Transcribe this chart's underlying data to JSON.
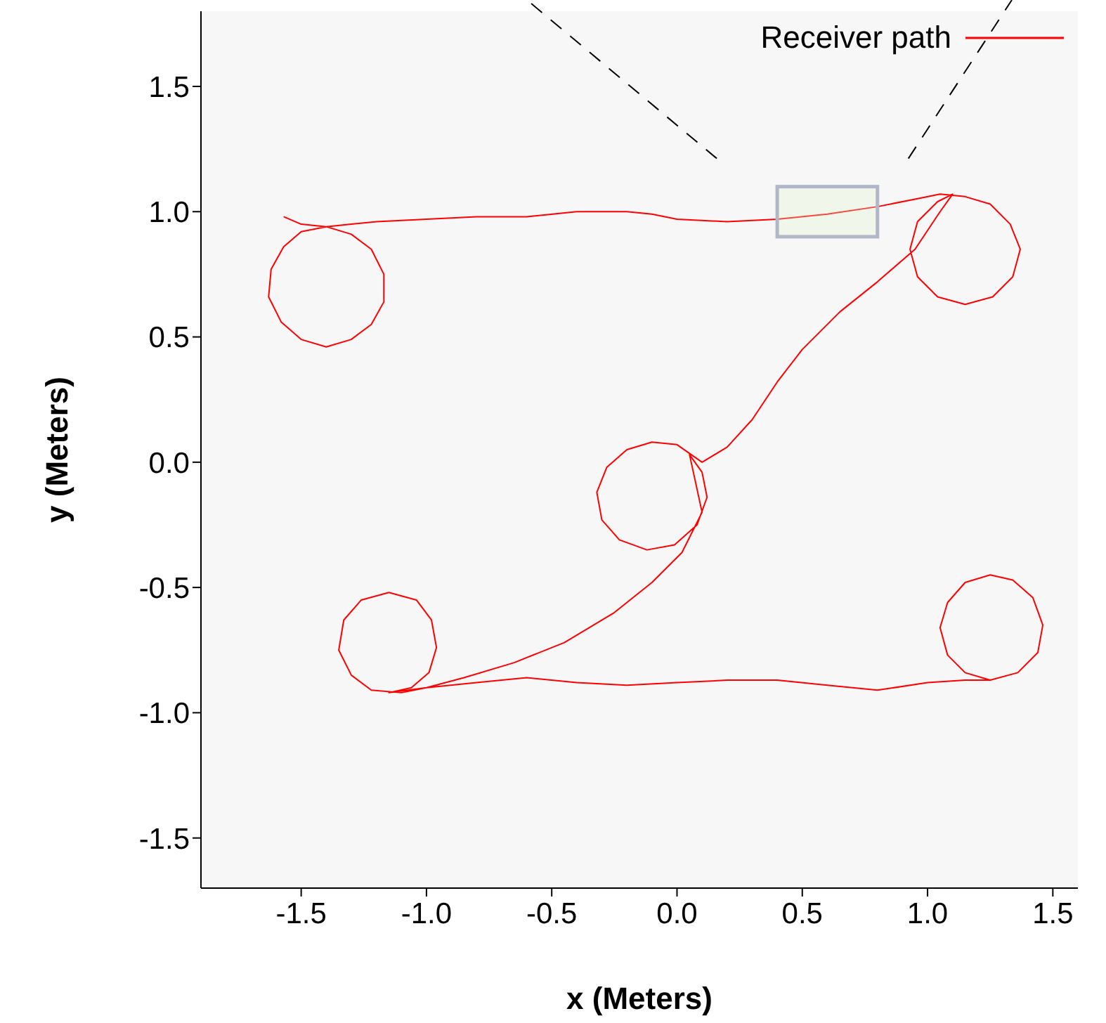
{
  "chart_data": {
    "type": "line",
    "xlabel": "x (Meters)",
    "ylabel": "y (Meters)",
    "xlim": [
      -1.9,
      1.6
    ],
    "ylim": [
      -1.7,
      1.8
    ],
    "xticks": [
      -1.5,
      {
        "value": -1,
        "label": "-1.0"
      },
      -0.5,
      {
        "value": 0,
        "label": "0.0"
      },
      0.5,
      {
        "value": 1,
        "label": "1.0"
      },
      1.5
    ],
    "yticks": [
      -1.5,
      {
        "value": -1,
        "label": "-1.0"
      },
      -0.5,
      {
        "value": 0,
        "label": "0.0"
      },
      0.5,
      {
        "value": 1,
        "label": "1.0"
      },
      1.5
    ],
    "grid": false,
    "legend": "top right",
    "marker": "none",
    "line_style": "solid",
    "series": [
      {
        "name": "Receiver path",
        "color": "#ff0000",
        "x": [
          -1.57,
          -1.5,
          -1.4,
          -1.3,
          -1.22,
          -1.17,
          -1.17,
          -1.22,
          -1.3,
          -1.4,
          -1.5,
          -1.58,
          -1.63,
          -1.62,
          -1.57,
          -1.5,
          -1.4,
          -1.3,
          -1.2,
          -1.0,
          -0.8,
          -0.6,
          -0.4,
          -0.2,
          -0.1,
          0.0,
          0.2,
          0.4,
          0.6,
          0.8,
          0.95,
          1.05,
          1.15,
          1.25,
          1.33,
          1.37,
          1.34,
          1.26,
          1.15,
          1.04,
          0.96,
          0.93,
          0.96,
          1.04,
          1.1,
          1.05,
          0.95,
          0.8,
          0.65,
          0.5,
          0.4,
          0.3,
          0.2,
          0.1,
          0.0,
          -0.1,
          -0.2,
          -0.28,
          -0.32,
          -0.3,
          -0.23,
          -0.12,
          -0.01,
          0.08,
          0.12,
          0.1,
          0.05,
          0.1,
          0.02,
          -0.1,
          -0.25,
          -0.45,
          -0.65,
          -0.85,
          -1.0,
          -1.1,
          -1.22,
          -1.3,
          -1.35,
          -1.33,
          -1.26,
          -1.15,
          -1.04,
          -0.98,
          -0.96,
          -0.99,
          -1.06,
          -1.15,
          -1.0,
          -0.8,
          -0.6,
          -0.4,
          -0.2,
          0.0,
          0.2,
          0.4,
          0.6,
          0.8,
          1.0,
          1.15,
          1.25,
          1.36,
          1.44,
          1.46,
          1.42,
          1.34,
          1.25,
          1.15,
          1.08,
          1.05,
          1.08,
          1.15,
          1.25
        ],
        "values": [
          0.98,
          0.95,
          0.94,
          0.91,
          0.85,
          0.75,
          0.64,
          0.55,
          0.49,
          0.46,
          0.49,
          0.56,
          0.66,
          0.77,
          0.86,
          0.92,
          0.94,
          0.95,
          0.96,
          0.97,
          0.98,
          0.98,
          1.0,
          1.0,
          0.99,
          0.97,
          0.96,
          0.97,
          0.99,
          1.02,
          1.05,
          1.07,
          1.06,
          1.03,
          0.95,
          0.85,
          0.74,
          0.66,
          0.63,
          0.66,
          0.74,
          0.85,
          0.96,
          1.04,
          1.07,
          1.0,
          0.85,
          0.72,
          0.6,
          0.45,
          0.32,
          0.17,
          0.06,
          0.0,
          0.07,
          0.08,
          0.05,
          -0.02,
          -0.12,
          -0.23,
          -0.31,
          -0.35,
          -0.33,
          -0.25,
          -0.14,
          -0.04,
          0.03,
          -0.2,
          -0.36,
          -0.48,
          -0.6,
          -0.72,
          -0.8,
          -0.86,
          -0.9,
          -0.92,
          -0.91,
          -0.85,
          -0.75,
          -0.63,
          -0.55,
          -0.52,
          -0.55,
          -0.63,
          -0.74,
          -0.84,
          -0.9,
          -0.92,
          -0.9,
          -0.88,
          -0.86,
          -0.88,
          -0.89,
          -0.88,
          -0.87,
          -0.87,
          -0.89,
          -0.91,
          -0.88,
          -0.87,
          -0.87,
          -0.84,
          -0.76,
          -0.65,
          -0.54,
          -0.47,
          -0.45,
          -0.48,
          -0.56,
          -0.66,
          -0.77,
          -0.84,
          -0.87
        ]
      }
    ]
  }
}
